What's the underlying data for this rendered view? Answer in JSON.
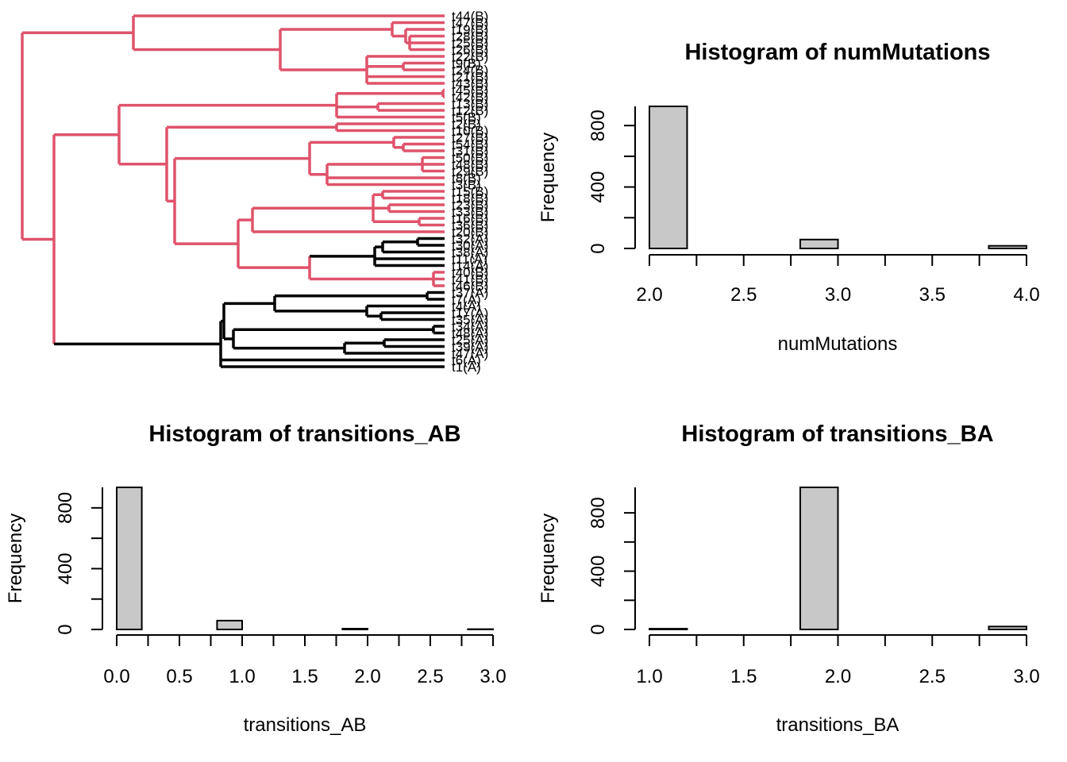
{
  "tree": {
    "tips": [
      "t44(B)",
      "t47(B)",
      "t19(B)",
      "t28(B)",
      "t25(B)",
      "t26(B)",
      "t22(B)",
      "t9(B)",
      "t24(B)",
      "t21(B)",
      "t43(B)",
      "t45(B)",
      "t42(B)",
      "t13(B)",
      "t12(B)",
      "t5(B)",
      "t2(B)",
      "t10(B)",
      "t27(B)",
      "t54(B)",
      "t31(B)",
      "t50(B)",
      "t48(B)",
      "t29(B)",
      "t8(B)",
      "t3(B)",
      "t15(B)",
      "t18(B)",
      "t23(B)",
      "t33(B)",
      "t16(B)",
      "t36(B)",
      "t20(B)",
      "t32(A)",
      "t30(A)",
      "t38(A)",
      "t11(A)",
      "t14(A)",
      "t40(B)",
      "t41(B)",
      "t46(B)",
      "t37(A)",
      "t7(A)",
      "t4(A)",
      "t17(A)",
      "t35(A)",
      "t34(A)",
      "t48(A)",
      "t25(A)",
      "t39(A)",
      "t47(A)",
      "t6(A)",
      "t1(A)"
    ],
    "colors": {
      "B": "#DF536B",
      "A": "#000000"
    }
  },
  "chart_data": [
    {
      "type": "bar",
      "title": "Histogram of numMutations",
      "xlabel": "numMutations",
      "ylabel": "Frequency",
      "bins": [
        [
          2.0,
          2.2
        ],
        [
          2.2,
          2.4
        ],
        [
          2.4,
          2.6
        ],
        [
          2.6,
          2.8
        ],
        [
          2.8,
          3.0
        ],
        [
          3.0,
          3.2
        ],
        [
          3.2,
          3.4
        ],
        [
          3.4,
          3.6
        ],
        [
          3.6,
          3.8
        ],
        [
          3.8,
          4.0
        ]
      ],
      "values": [
        925,
        0,
        0,
        0,
        58,
        0,
        0,
        0,
        0,
        17
      ],
      "xlim": [
        2.0,
        4.0
      ],
      "ylim": [
        0,
        925
      ],
      "xticks": [
        "2.0",
        "2.5",
        "3.0",
        "3.5",
        "4.0"
      ],
      "yticks": [
        "0",
        "400",
        "800"
      ],
      "bar_color": "#C8C8C8"
    },
    {
      "type": "bar",
      "title": "Histogram of transitions_AB",
      "xlabel": "transitions_AB",
      "ylabel": "Frequency",
      "bins": [
        [
          0.0,
          0.2
        ],
        [
          0.2,
          0.4
        ],
        [
          0.4,
          0.6
        ],
        [
          0.6,
          0.8
        ],
        [
          0.8,
          1.0
        ],
        [
          1.0,
          1.2
        ],
        [
          1.2,
          1.4
        ],
        [
          1.4,
          1.6
        ],
        [
          1.6,
          1.8
        ],
        [
          1.8,
          2.0
        ],
        [
          2.0,
          2.2
        ],
        [
          2.2,
          2.4
        ],
        [
          2.4,
          2.6
        ],
        [
          2.6,
          2.8
        ],
        [
          2.8,
          3.0
        ]
      ],
      "values": [
        935,
        0,
        0,
        0,
        58,
        0,
        0,
        0,
        0,
        5,
        0,
        0,
        0,
        0,
        2
      ],
      "xlim": [
        0.0,
        3.0
      ],
      "ylim": [
        0,
        935
      ],
      "xticks": [
        "0.0",
        "0.5",
        "1.0",
        "1.5",
        "2.0",
        "2.5",
        "3.0"
      ],
      "yticks": [
        "0",
        "400",
        "800"
      ],
      "bar_color": "#C8C8C8"
    },
    {
      "type": "bar",
      "title": "Histogram of transitions_BA",
      "xlabel": "transitions_BA",
      "ylabel": "Frequency",
      "bins": [
        [
          1.0,
          1.2
        ],
        [
          1.2,
          1.4
        ],
        [
          1.4,
          1.6
        ],
        [
          1.6,
          1.8
        ],
        [
          1.8,
          2.0
        ],
        [
          2.0,
          2.2
        ],
        [
          2.2,
          2.4
        ],
        [
          2.4,
          2.6
        ],
        [
          2.6,
          2.8
        ],
        [
          2.8,
          3.0
        ]
      ],
      "values": [
        5,
        0,
        0,
        0,
        975,
        0,
        0,
        0,
        0,
        20
      ],
      "xlim": [
        1.0,
        3.0
      ],
      "ylim": [
        0,
        975
      ],
      "xticks": [
        "1.0",
        "1.5",
        "2.0",
        "2.5",
        "3.0"
      ],
      "yticks": [
        "0",
        "400",
        "800"
      ],
      "bar_color": "#C8C8C8"
    }
  ]
}
